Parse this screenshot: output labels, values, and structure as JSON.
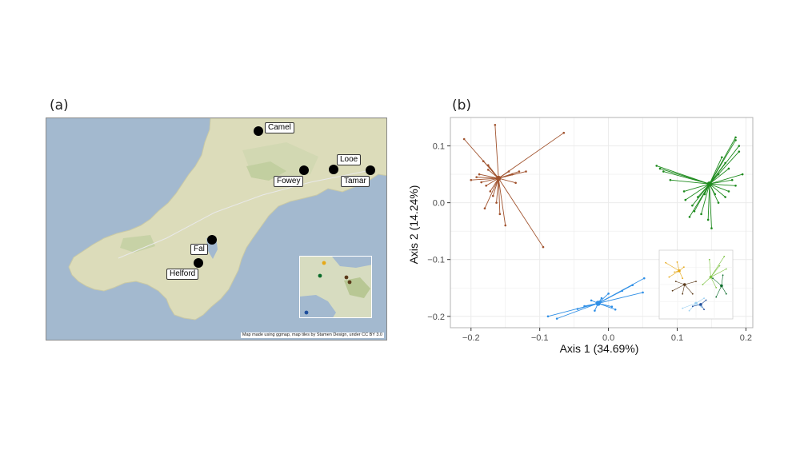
{
  "panels": {
    "a_label": "(a)",
    "b_label": "(b)"
  },
  "map": {
    "credit": "Map made using ggmap, map tiles by Stamen Design, under CC BY 3.0",
    "sites": [
      {
        "name": "Camel"
      },
      {
        "name": "Looe"
      },
      {
        "name": "Fowey"
      },
      {
        "name": "Tamar"
      },
      {
        "name": "Fal"
      },
      {
        "name": "Helford"
      }
    ]
  },
  "chart_data": {
    "type": "scatter",
    "title": "",
    "xlabel": "Axis 1 (34.69%)",
    "ylabel": "Axis 2 (14.24%)",
    "xlim": [
      -0.23,
      0.21
    ],
    "ylim": [
      -0.22,
      0.15
    ],
    "xticks": [
      -0.2,
      -0.1,
      0.0,
      0.1,
      0.2
    ],
    "xtick_labels": [
      "−0.2",
      "−0.1",
      "0.0",
      "0.1",
      "0.2"
    ],
    "yticks": [
      -0.2,
      -0.1,
      0.0,
      0.1
    ],
    "ytick_labels": [
      "−0.2",
      "−0.1",
      "0.0",
      "0.1"
    ],
    "grid": true,
    "colors": {
      "brown": "#a0522d",
      "green": "#1e8b1e",
      "blue": "#2f8fe6",
      "panel_border": "#b3b3b3",
      "grid": "#ebebeb"
    },
    "series": [
      {
        "color": "brown",
        "centroid": [
          -0.16,
          0.043
        ],
        "points": [
          [
            -0.21,
            0.112
          ],
          [
            -0.165,
            0.137
          ],
          [
            -0.065,
            0.123
          ],
          [
            -0.182,
            0.073
          ],
          [
            -0.175,
            0.058
          ],
          [
            -0.188,
            0.05
          ],
          [
            -0.192,
            0.045
          ],
          [
            -0.2,
            0.04
          ],
          [
            -0.185,
            0.036
          ],
          [
            -0.178,
            0.03
          ],
          [
            -0.172,
            0.02
          ],
          [
            -0.168,
            0.012
          ],
          [
            -0.163,
            0.0
          ],
          [
            -0.18,
            -0.01
          ],
          [
            -0.158,
            -0.02
          ],
          [
            -0.15,
            -0.04
          ],
          [
            -0.145,
            0.055
          ],
          [
            -0.14,
            0.05
          ],
          [
            -0.13,
            0.055
          ],
          [
            -0.12,
            0.055
          ],
          [
            -0.135,
            0.035
          ],
          [
            -0.175,
            0.066
          ],
          [
            -0.095,
            -0.078
          ]
        ]
      },
      {
        "color": "green",
        "centroid": [
          0.147,
          0.033
        ],
        "points": [
          [
            0.07,
            0.065
          ],
          [
            0.075,
            0.06
          ],
          [
            0.08,
            0.055
          ],
          [
            0.09,
            0.04
          ],
          [
            0.11,
            0.02
          ],
          [
            0.112,
            0.005
          ],
          [
            0.122,
            -0.005
          ],
          [
            0.118,
            -0.025
          ],
          [
            0.125,
            -0.015
          ],
          [
            0.135,
            -0.02
          ],
          [
            0.145,
            -0.03
          ],
          [
            0.15,
            -0.045
          ],
          [
            0.16,
            0.0
          ],
          [
            0.17,
            0.01
          ],
          [
            0.175,
            0.02
          ],
          [
            0.185,
            0.03
          ],
          [
            0.195,
            0.05
          ],
          [
            0.18,
            0.04
          ],
          [
            0.175,
            0.06
          ],
          [
            0.17,
            0.07
          ],
          [
            0.19,
            0.09
          ],
          [
            0.19,
            0.1
          ],
          [
            0.185,
            0.115
          ],
          [
            0.165,
            0.08
          ],
          [
            0.16,
            0.05
          ],
          [
            0.155,
            0.015
          ],
          [
            0.13,
            0.01
          ],
          [
            0.14,
            0.015
          ],
          [
            0.185,
            0.11
          ]
        ]
      },
      {
        "color": "blue",
        "centroid": [
          -0.015,
          -0.177
        ],
        "points": [
          [
            -0.088,
            -0.2
          ],
          [
            -0.075,
            -0.204
          ],
          [
            -0.045,
            -0.187
          ],
          [
            -0.035,
            -0.182
          ],
          [
            -0.025,
            -0.172
          ],
          [
            -0.01,
            -0.168
          ],
          [
            0.0,
            -0.16
          ],
          [
            0.02,
            -0.155
          ],
          [
            0.035,
            -0.145
          ],
          [
            0.05,
            -0.158
          ],
          [
            0.052,
            -0.133
          ],
          [
            0.01,
            -0.188
          ],
          [
            0.005,
            -0.183
          ],
          [
            -0.02,
            -0.19
          ]
        ]
      }
    ],
    "inset": {
      "clusters": [
        {
          "color": "#e6a817",
          "centroid": [
            0.25,
            0.72
          ],
          "points": [
            [
              0.05,
              0.85
            ],
            [
              0.1,
              0.62
            ],
            [
              0.18,
              0.7
            ],
            [
              0.32,
              0.78
            ],
            [
              0.3,
              0.6
            ],
            [
              0.22,
              0.86
            ]
          ]
        },
        {
          "color": "#5a3a1a",
          "centroid": [
            0.33,
            0.5
          ],
          "points": [
            [
              0.15,
              0.4
            ],
            [
              0.2,
              0.55
            ],
            [
              0.45,
              0.35
            ],
            [
              0.5,
              0.55
            ],
            [
              0.3,
              0.35
            ]
          ]
        },
        {
          "color": "#7cc242",
          "centroid": [
            0.72,
            0.62
          ],
          "points": [
            [
              0.6,
              0.5
            ],
            [
              0.85,
              0.8
            ],
            [
              0.95,
              0.75
            ],
            [
              0.7,
              0.9
            ],
            [
              0.8,
              0.45
            ],
            [
              0.92,
              0.95
            ]
          ]
        },
        {
          "color": "#0a6b2a",
          "centroid": [
            0.88,
            0.48
          ],
          "points": [
            [
              0.8,
              0.3
            ],
            [
              0.95,
              0.35
            ],
            [
              0.9,
              0.65
            ],
            [
              0.75,
              0.6
            ]
          ]
        },
        {
          "color": "#9ad0f2",
          "centroid": [
            0.5,
            0.2
          ],
          "points": [
            [
              0.3,
              0.12
            ],
            [
              0.4,
              0.08
            ],
            [
              0.62,
              0.28
            ],
            [
              0.58,
              0.14
            ]
          ]
        },
        {
          "color": "#1f4e9c",
          "centroid": [
            0.57,
            0.18
          ],
          "points": [
            [
              0.45,
              0.15
            ],
            [
              0.65,
              0.25
            ],
            [
              0.62,
              0.1
            ]
          ]
        }
      ]
    }
  }
}
